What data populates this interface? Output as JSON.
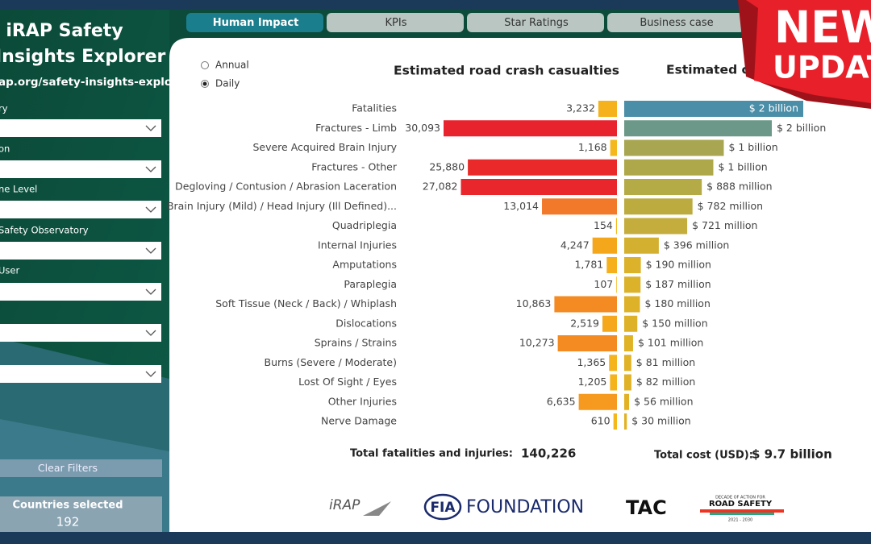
{
  "header": {
    "tabs": [
      "Human Impact",
      "KPIs",
      "Star Ratings",
      "Business case"
    ],
    "active_tab": "Human Impact",
    "banner": [
      "NEW",
      "UPDATE"
    ]
  },
  "sidebar": {
    "title": [
      "iRAP Safety",
      "Insights Explorer"
    ],
    "url": "ap.org/safety-insights-explorer",
    "filters": [
      "ry",
      "on",
      "ne Level",
      "Safety Observatory",
      "User"
    ],
    "clear_button": "Clear Filters",
    "countries_label": "Countries selected",
    "countries_count": "192"
  },
  "period": {
    "options": [
      "Annual",
      "Daily"
    ],
    "selected": "Daily"
  },
  "chart_data": [
    {
      "type": "bar",
      "title": "Estimated road crash casualties",
      "categories": [
        "Fatalities",
        "Fractures - Limb",
        "Severe Acquired Brain Injury",
        "Fractures - Other",
        "Degloving / Contusion / Abrasion Laceration",
        "Brain Injury (Mild) / Head Injury (Ill Defined)...",
        "Quadriplegia",
        "Internal Injuries",
        "Amputations",
        "Paraplegia",
        "Soft Tissue (Neck / Back) / Whiplash",
        "Dislocations",
        "Sprains / Strains",
        "Burns (Severe / Moderate)",
        "Lost Of Sight / Eyes",
        "Other Injuries",
        "Nerve Damage"
      ],
      "values": [
        3232,
        30093,
        1168,
        25880,
        27082,
        13014,
        154,
        4247,
        1781,
        107,
        10863,
        2519,
        10273,
        1365,
        1205,
        6635,
        610
      ],
      "value_labels": [
        "3,232",
        "30,093",
        "1,168",
        "25,880",
        "27,082",
        "13,014",
        "154",
        "4,247",
        "1,781",
        "107",
        "10,863",
        "2,519",
        "10,273",
        "1,365",
        "1,205",
        "6,635",
        "610"
      ],
      "colors": [
        "#f5b21c",
        "#e8232d",
        "#f5b81c",
        "#ea2a2a",
        "#e8262b",
        "#f3792a",
        "#f5b81c",
        "#f5a71c",
        "#f5b01c",
        "#f5b81c",
        "#f48a22",
        "#f5a81c",
        "#f48a22",
        "#f5b41c",
        "#f5b41c",
        "#f59a1e",
        "#f5b81c"
      ],
      "total_label": "Total fatalities and injuries:",
      "total": "140,226"
    },
    {
      "type": "bar",
      "title": "Estimated cost",
      "values": [
        2050000000,
        1690000000,
        1140000000,
        1020000000,
        888000000,
        782000000,
        721000000,
        396000000,
        190000000,
        187000000,
        180000000,
        150000000,
        101000000,
        81000000,
        82000000,
        56000000,
        30000000
      ],
      "value_labels": [
        "$ 2 billion",
        "$ 2 billion",
        "$ 1 billion",
        "$ 1 billion",
        "$ 888 million",
        "$ 782 million",
        "$ 721 million",
        "$ 396 million",
        "$ 190 million",
        "$ 187 million",
        "$ 180 million",
        "$ 150 million",
        "$ 101 million",
        "$ 81 million",
        "$ 82 million",
        "$ 56 million",
        "$ 30 million"
      ],
      "colors": [
        "#4a8ea8",
        "#6c988a",
        "#a8a650",
        "#aea84a",
        "#b4aa46",
        "#bcac40",
        "#c4ad3c",
        "#d4b030",
        "#dcb22a",
        "#dcb22a",
        "#deb228",
        "#deb228",
        "#e0b226",
        "#e0b226",
        "#e0b226",
        "#e2b224",
        "#e2b224"
      ],
      "total_label": "Total cost (USD):",
      "total": "$ 9.7 billion"
    }
  ],
  "logos": [
    "iRAP",
    "FIA",
    "FOUNDATION",
    "TAC",
    "DECADE OF ACTION FOR",
    "ROAD SAFETY",
    "2021 - 2030"
  ]
}
